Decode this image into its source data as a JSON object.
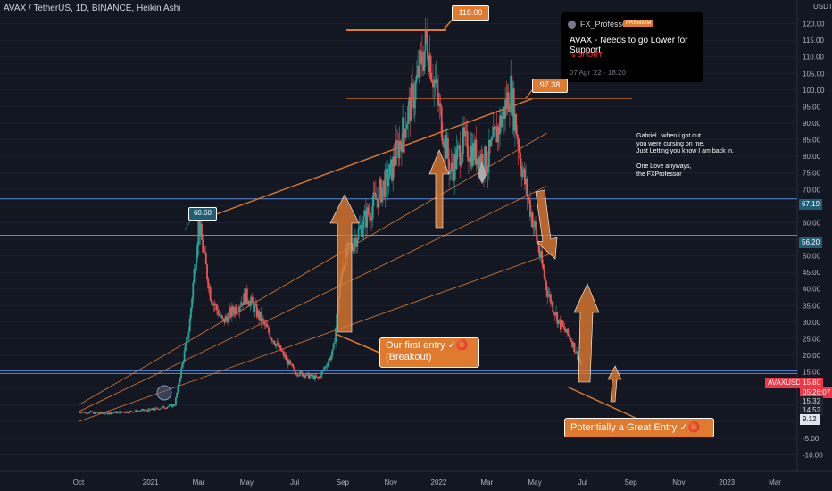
{
  "header": {
    "title": "AVAX / TetherUS, 1D, BINANCE, Heikin Ashi"
  },
  "idea_card": {
    "author": "FX_Professor",
    "badge": "PREMIUM",
    "title": "AVAX - Needs to go Lower for Support",
    "direction": "↘ SHORT",
    "date": "07 Apr '22 · 18:20"
  },
  "annotations": {
    "note": "Gabriel.. when i got out\nyou were cursing on me.\nJust Letting you know I am back in.\n\nOne Love anyways,\nthe FXProfessor",
    "callout_first_entry": "Our first entry ✓⭕\n(Breakout)",
    "callout_great_entry": "Potentially a Great Entry ✓⭕",
    "label_high": "118.00",
    "label_6060": "60.60",
    "label_9738": "97.38"
  },
  "price_tags": {
    "symbol": "AVAXUSDT",
    "last": "15.80",
    "countdown": "05:26:07",
    "line_6719": "67.19",
    "line_5620": "56.20",
    "line_1532": "15.32",
    "line_1452": "14.52",
    "line_912": "9.12",
    "currency": "USDT"
  },
  "colors": {
    "background": "#131722",
    "up": "#26a69a",
    "down": "#ef5350",
    "accent": "#e07a2f",
    "hline": "#5b8bd6"
  },
  "chart_data": {
    "type": "candlestick",
    "title": "AVAX / TetherUS, 1D, BINANCE, Heikin Ashi",
    "ylabel": "USDT",
    "ylim": [
      -15,
      125
    ],
    "yticks": [
      120,
      115,
      110,
      105,
      100,
      95,
      90,
      85,
      80,
      75,
      70,
      65,
      60,
      55,
      50,
      45,
      40,
      35,
      30,
      25,
      20,
      15,
      10,
      5,
      0,
      -5,
      -10
    ],
    "ytick_labels": [
      "120.00",
      "115.00",
      "110.00",
      "105.00",
      "100.00",
      "95.00",
      "90.00",
      "85.00",
      "80.00",
      "75.00",
      "70.00",
      "65.00",
      "60.00",
      "55.00",
      "50.00",
      "45.00",
      "40.00",
      "35.00",
      "30.00",
      "25.00",
      "20.00",
      "15.00",
      "10.00",
      "5.00",
      "0.00",
      "-5.00",
      "-10.00"
    ],
    "x_labels": [
      "Oct",
      "2021",
      "Mar",
      "May",
      "Jul",
      "Sep",
      "Nov",
      "2022",
      "Mar",
      "May",
      "Jul",
      "Sep",
      "Nov",
      "2023",
      "Mar"
    ],
    "x_label_months": [
      0,
      3,
      5,
      7,
      9,
      11,
      13,
      15,
      17,
      19,
      21,
      23,
      25,
      27,
      29
    ],
    "price_path_months": [
      0,
      1,
      2,
      3,
      4,
      4.6,
      5,
      5.5,
      6,
      7,
      8,
      9,
      10,
      10.6,
      11,
      12,
      13,
      14,
      14.5,
      15,
      15.5,
      16,
      17,
      18,
      18.5,
      19,
      19.5,
      20,
      20.5,
      21
    ],
    "price_path_values": [
      3,
      2.5,
      3,
      3.5,
      5,
      28,
      60,
      38,
      30,
      38,
      26,
      15,
      13,
      21,
      48,
      62,
      75,
      100,
      115,
      95,
      75,
      84,
      78,
      100,
      75,
      58,
      40,
      30,
      25,
      16
    ],
    "horizontal_levels": [
      118,
      97.38,
      67.19,
      56.2,
      15.32,
      14.52
    ],
    "trendlines": [
      {
        "from": [
          5,
          60.6
        ],
        "to": [
          18.9,
          97.38
        ]
      },
      {
        "from": [
          0,
          5
        ],
        "to": [
          19.5,
          87
        ]
      },
      {
        "from": [
          0,
          3
        ],
        "to": [
          19.5,
          71
        ]
      },
      {
        "from": [
          0,
          0
        ],
        "to": [
          19.8,
          51
        ]
      }
    ]
  }
}
